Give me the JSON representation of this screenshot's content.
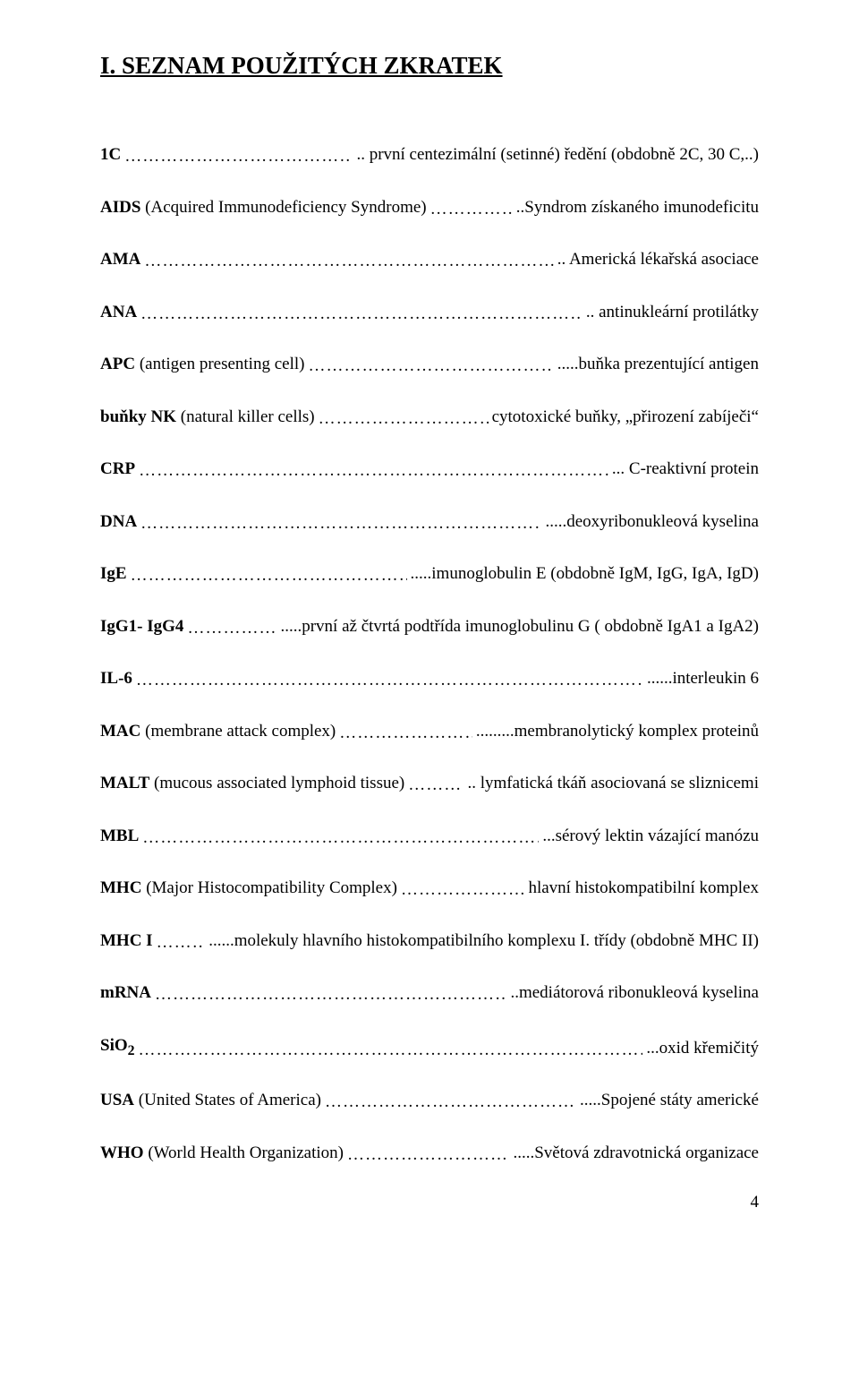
{
  "heading": "I. SEZNAM POUŽITÝCH ZKRATEK",
  "entries": [
    {
      "abbr_bold": "1C",
      "abbr_rest": "",
      "def": ".. první centezimální (setinné) ředění (obdobně 2C, 30 C,..)"
    },
    {
      "abbr_bold": "AIDS",
      "abbr_rest": " (Acquired Immunodeficiency Syndrome)",
      "def": "..Syndrom získaného imunodeficitu"
    },
    {
      "abbr_bold": "AMA",
      "abbr_rest": "",
      "def": ".. Americká lékařská asociace"
    },
    {
      "abbr_bold": "ANA",
      "abbr_rest": "",
      "def": ".. antinukleární protilátky"
    },
    {
      "abbr_bold": "APC",
      "abbr_rest": " (antigen presenting cell)",
      "def": ".....buňka prezentující antigen"
    },
    {
      "abbr_bold": "buňky NK",
      "abbr_rest": " (natural killer cells)",
      "def": " cytotoxické buňky, „přirození zabíječi“"
    },
    {
      "abbr_bold": "CRP",
      "abbr_rest": "",
      "def": "... C-reaktivní protein"
    },
    {
      "abbr_bold": "DNA",
      "abbr_rest": "",
      "def": ".....deoxyribonukleová kyselina"
    },
    {
      "abbr_bold": "IgE",
      "abbr_rest": "",
      "def": ".....imunoglobulin E  (obdobně IgM, IgG, IgA, IgD)"
    },
    {
      "abbr_bold": "IgG1- IgG4",
      "abbr_rest": "",
      "def": ".....první až čtvrtá podtřída imunoglobulinu G ( obdobně IgA1 a IgA2)"
    },
    {
      "abbr_bold": "IL-6",
      "abbr_rest": "",
      "def": "......interleukin 6"
    },
    {
      "abbr_bold": "MAC",
      "abbr_rest": " (membrane attack complex)",
      "def": ".........membranolytický komplex proteinů"
    },
    {
      "abbr_bold": "MALT",
      "abbr_rest": " (mucous associated lymphoid tissue)",
      "def": ".. lymfatická tkáň asociovaná se sliznicemi"
    },
    {
      "abbr_bold": "MBL",
      "abbr_rest": "",
      "def": "...sérový lektin vázající manózu"
    },
    {
      "abbr_bold": "MHC",
      "abbr_rest": " (Major Histocompatibility Complex)",
      "def": " hlavní histokompatibilní komplex"
    },
    {
      "abbr_bold": "MHC I",
      "abbr_rest": "",
      "def": "......molekuly hlavního histokompatibilního komplexu I. třídy (obdobně MHC II)"
    },
    {
      "abbr_bold": "mRNA",
      "abbr_rest": "",
      "def": "..mediátorová ribonukleová kyselina"
    },
    {
      "abbr_bold": "SiO",
      "abbr_rest": "",
      "sub": "2",
      "def": "...oxid křemičitý"
    },
    {
      "abbr_bold": "USA",
      "abbr_rest": " (United States of America)",
      "def": ".....Spojené státy americké"
    },
    {
      "abbr_bold": "WHO",
      "abbr_rest": " (World Health Organization)",
      "def": ".....Světová zdravotnická organizace"
    }
  ],
  "pagenum": "4"
}
